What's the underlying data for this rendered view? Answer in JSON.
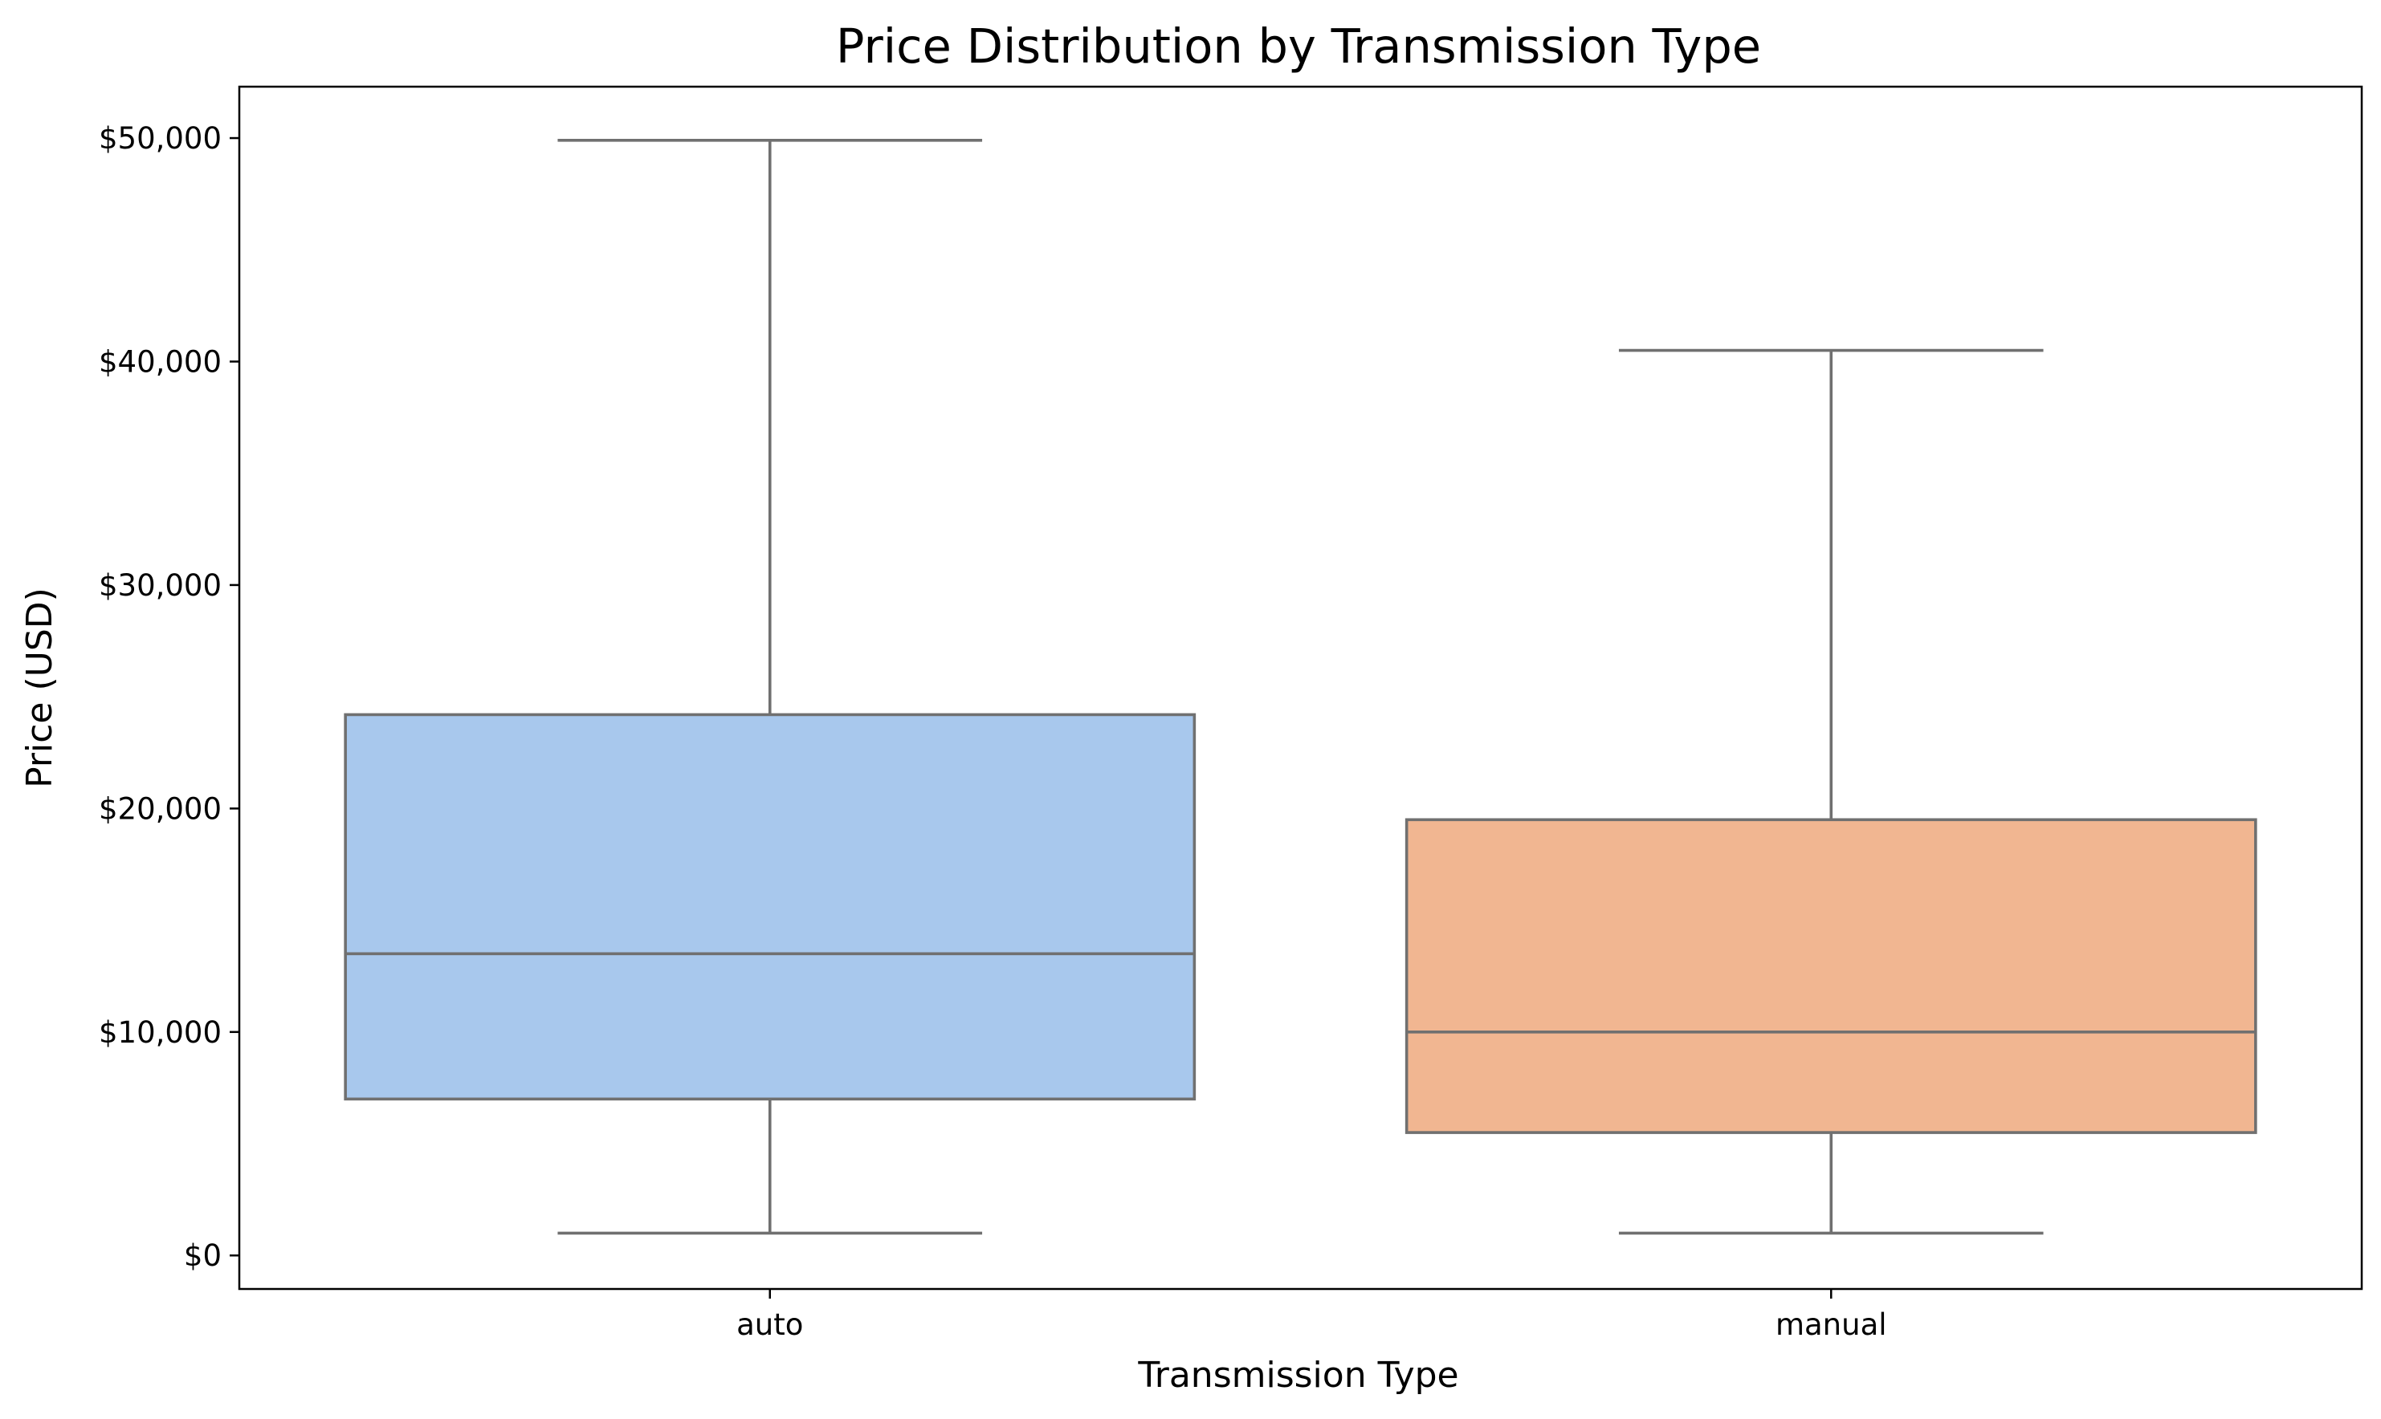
{
  "chart_data": {
    "type": "box",
    "title": "Price Distribution by Transmission Type",
    "xlabel": "Transmission Type",
    "ylabel": "Price (USD)",
    "ylim": [
      -1500,
      52300
    ],
    "yticks": [
      0,
      10000,
      20000,
      30000,
      40000,
      50000
    ],
    "ytick_labels": [
      "$0",
      "$10,000",
      "$20,000",
      "$30,000",
      "$40,000",
      "$50,000"
    ],
    "categories": [
      "auto",
      "manual"
    ],
    "boxes": [
      {
        "category": "auto",
        "whisker_low": 1000,
        "q1": 7000,
        "median": 13500,
        "q3": 24200,
        "whisker_high": 49900,
        "color": "#a8c8ed"
      },
      {
        "category": "manual",
        "whisker_low": 1000,
        "q1": 5500,
        "median": 10000,
        "q3": 19500,
        "whisker_high": 40500,
        "color": "#f1b691"
      }
    ],
    "line_color": "#707070",
    "grid": false,
    "legend": "none"
  }
}
